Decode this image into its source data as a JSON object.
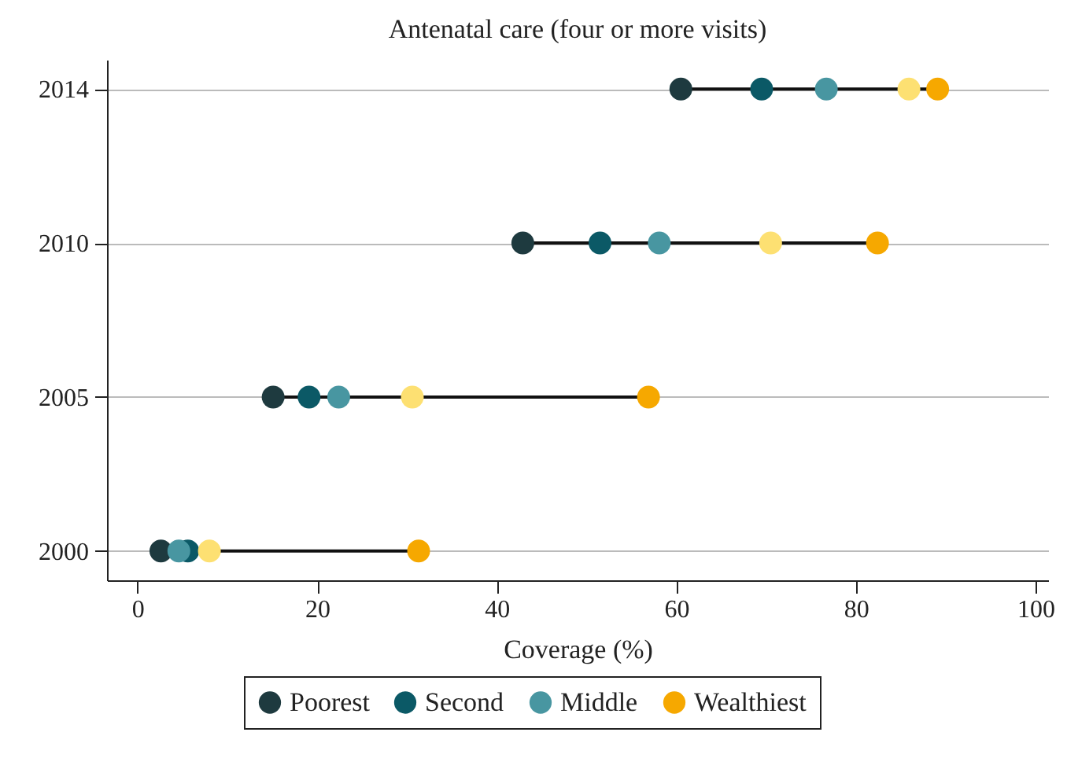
{
  "chart_data": {
    "type": "scatter",
    "orientation": "horizontal",
    "title": "Antenatal care (four or more visits)",
    "xlabel": "Coverage (%)",
    "categories": [
      "2014",
      "2010",
      "2005",
      "2000"
    ],
    "series": [
      {
        "name": "Poorest",
        "color": "#1e3a3f",
        "values": [
          60.5,
          42.9,
          15.1,
          2.6
        ]
      },
      {
        "name": "Second",
        "color": "#0b5966",
        "values": [
          69.5,
          51.5,
          19.1,
          5.6
        ]
      },
      {
        "name": "Middle",
        "color": "#4896a1",
        "values": [
          76.7,
          58.1,
          22.4,
          4.6
        ]
      },
      {
        "color": "#fde072",
        "values": [
          85.9,
          70.5,
          30.6,
          8.0
        ]
      },
      {
        "name": "Wealthiest",
        "color": "#f6a800",
        "values": [
          89.1,
          82.4,
          56.9,
          31.3
        ]
      }
    ],
    "xlim": [
      -3.4,
      101.4
    ],
    "xticks": [
      0,
      20,
      40,
      60,
      80,
      100
    ],
    "grid": "y",
    "marker": "circle",
    "legend": "bottom"
  }
}
